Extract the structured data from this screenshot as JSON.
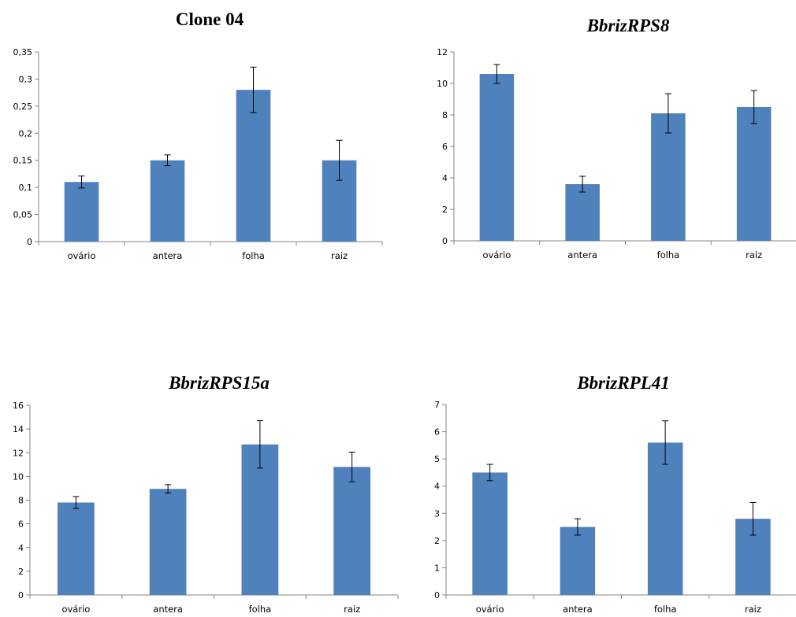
{
  "chart_data": [
    {
      "type": "bar",
      "title": "Clone 04",
      "title_italic": false,
      "categories": [
        "ovário",
        "antera",
        "folha",
        "raiz"
      ],
      "values": [
        0.11,
        0.15,
        0.28,
        0.15
      ],
      "errors": [
        0.011,
        0.01,
        0.042,
        0.037
      ],
      "ylim": [
        0,
        0.35
      ],
      "yticks": [
        0,
        0.05,
        0.1,
        0.15,
        0.2,
        0.25,
        0.3,
        0.35
      ],
      "ytick_labels": [
        "0",
        "0,05",
        "0,1",
        "0,15",
        "0,2",
        "0,25",
        "0,3",
        "0,35"
      ],
      "xlabel": "",
      "ylabel": "",
      "grid": false,
      "bar_color": "#4f81bd"
    },
    {
      "type": "bar",
      "title": "BbrizRPS8",
      "title_italic": true,
      "categories": [
        "ovário",
        "antera",
        "folha",
        "raiz"
      ],
      "values": [
        10.6,
        3.6,
        8.1,
        8.5
      ],
      "errors": [
        0.6,
        0.5,
        1.25,
        1.05
      ],
      "ylim": [
        0,
        12
      ],
      "yticks": [
        0,
        2,
        4,
        6,
        8,
        10,
        12
      ],
      "ytick_labels": [
        "0",
        "2",
        "4",
        "6",
        "8",
        "10",
        "12"
      ],
      "xlabel": "",
      "ylabel": "",
      "grid": false,
      "bar_color": "#4f81bd"
    },
    {
      "type": "bar",
      "title": "BbrizRPS15a",
      "title_italic": true,
      "categories": [
        "ovário",
        "antera",
        "folha",
        "raiz"
      ],
      "values": [
        7.8,
        8.95,
        12.7,
        10.8
      ],
      "errors": [
        0.5,
        0.35,
        2.0,
        1.25
      ],
      "ylim": [
        0,
        16
      ],
      "yticks": [
        0,
        2,
        4,
        6,
        8,
        10,
        12,
        14,
        16
      ],
      "ytick_labels": [
        "0",
        "2",
        "4",
        "6",
        "8",
        "10",
        "12",
        "14",
        "16"
      ],
      "xlabel": "",
      "ylabel": "",
      "grid": false,
      "bar_color": "#4f81bd"
    },
    {
      "type": "bar",
      "title": "BbrizRPL41",
      "title_italic": true,
      "categories": [
        "ovário",
        "antera",
        "folha",
        "raiz"
      ],
      "values": [
        4.5,
        2.5,
        5.6,
        2.8
      ],
      "errors": [
        0.3,
        0.3,
        0.8,
        0.6
      ],
      "ylim": [
        0,
        7
      ],
      "yticks": [
        0,
        1,
        2,
        3,
        4,
        5,
        6,
        7
      ],
      "ytick_labels": [
        "0",
        "1",
        "2",
        "3",
        "4",
        "5",
        "6",
        "7"
      ],
      "xlabel": "",
      "ylabel": "",
      "grid": false,
      "bar_color": "#4f81bd"
    }
  ]
}
